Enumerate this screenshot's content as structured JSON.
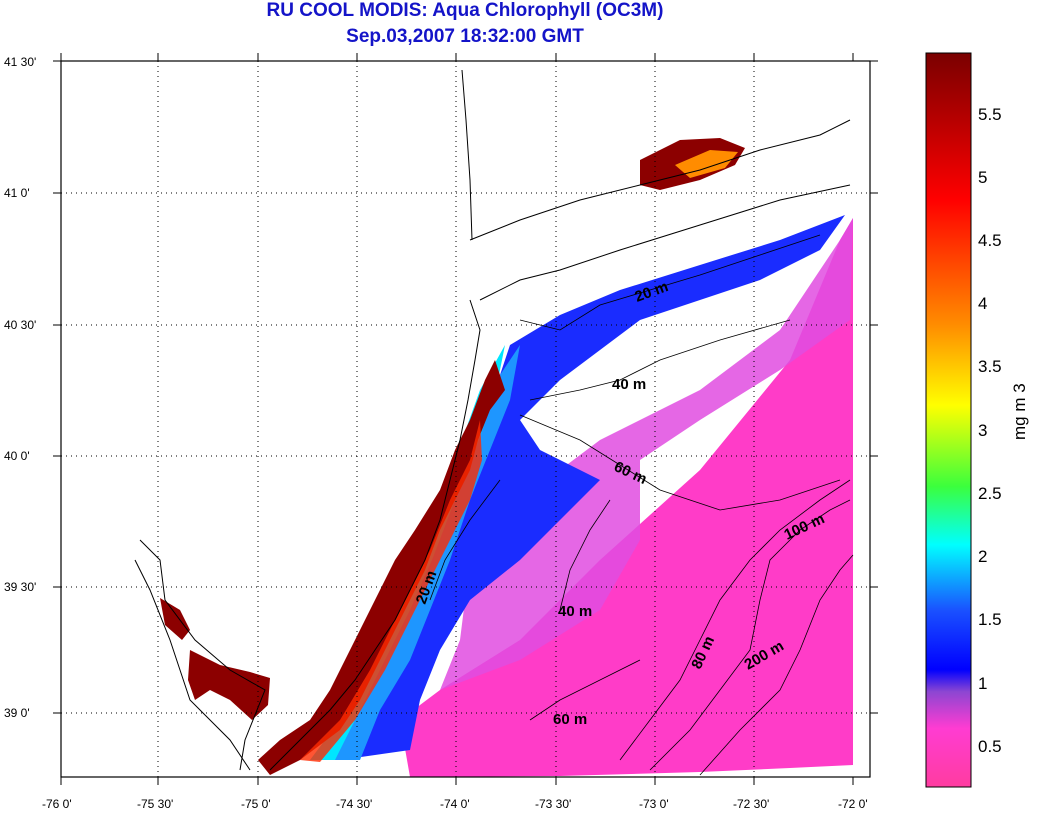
{
  "title": {
    "line1": "RU COOL MODIS: Aqua Chlorophyll (OC3M)",
    "line2": "Sep.03,2007 18:32:00 GMT"
  },
  "axes": {
    "lat_labels": [
      "41 30'",
      "41 0'",
      "40 30'",
      "40 0'",
      "39 30'",
      "39 0'"
    ],
    "lon_labels": [
      "-76 0'",
      "-75 30'",
      "-75 0'",
      "-74 30'",
      "-74 0'",
      "-73 30'",
      "-73 0'",
      "-72 30'",
      "-72 0'"
    ],
    "lat_range": [
      38.77,
      41.52
    ],
    "lon_range": [
      -76.0,
      -72.0
    ],
    "grid": "dotted"
  },
  "contours": [
    "20 m",
    "40 m",
    "60 m",
    "20 m",
    "40 m",
    "60 m",
    "80 m",
    "100 m",
    "200 m"
  ],
  "colorbar": {
    "unit": "mg m 3",
    "ticks": [
      "5.5",
      "5",
      "4.5",
      "4",
      "3.5",
      "3",
      "2.5",
      "2",
      "1.5",
      "1",
      "0.5"
    ],
    "range": [
      0.15,
      6.0
    ],
    "colors": {
      "max": "#7a0000",
      "red": "#ff0000",
      "orange": "#ff8c00",
      "yellow": "#ffff00",
      "green": "#3cff3c",
      "cyan": "#00ffff",
      "blue": "#1a50ff",
      "deep_blue": "#0000ff",
      "violet": "#8c46d2",
      "magenta": "#ff3cd2",
      "min": "#ff3ca0"
    }
  }
}
